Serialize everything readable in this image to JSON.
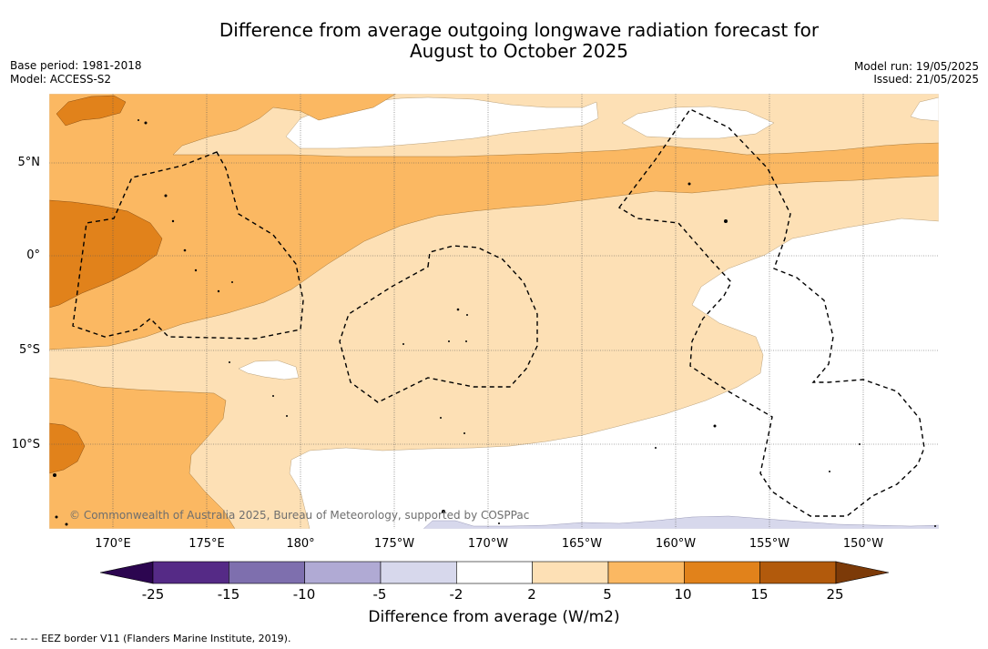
{
  "title_line1": "Difference from average outgoing longwave radiation forecast for",
  "title_line2": "August to October 2025",
  "base_period": "Base period: 1981-2018",
  "model": "Model: ACCESS-S2",
  "model_run": "Model run: 19/05/2025",
  "issued": "Issued: 21/05/2025",
  "lat_labels": [
    "5°N",
    "0°",
    "5°S",
    "10°S"
  ],
  "lon_labels": [
    "170°E",
    "175°E",
    "180°",
    "175°W",
    "170°W",
    "165°W",
    "160°W",
    "155°W",
    "150°W"
  ],
  "copyright": "© Commonwealth of Australia 2025, Bureau of Meteorology, supported by COSPPac",
  "colorbar": {
    "ticks": [
      "-25",
      "-15",
      "-10",
      "-5",
      "-2",
      "2",
      "5",
      "10",
      "15",
      "25"
    ],
    "colors": [
      "#552a86",
      "#7e6fae",
      "#b0aad4",
      "#d7d8ec",
      "#ffffff",
      "#fde0b5",
      "#fbb862",
      "#e1821b",
      "#b25a0c"
    ],
    "under_color": "#2c0650",
    "over_color": "#7c3a08",
    "title": "Difference from average (W/m2)"
  },
  "legend_text": "--  --  -- EEZ border V11 (Flanders Marine Institute, 2019)."
}
